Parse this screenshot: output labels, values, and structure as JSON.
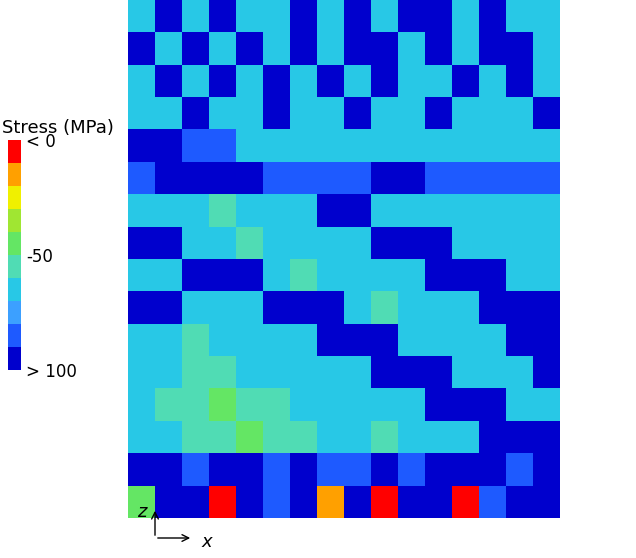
{
  "chart_data": {
    "type": "heatmap",
    "colorbar": {
      "title": "Stress (MPa)",
      "range": [
        -100,
        0
      ],
      "levels": [
        -100,
        -90,
        -80,
        -70,
        -60,
        -50,
        -40,
        -30,
        -20,
        -10,
        0
      ],
      "colors": [
        "#0000cd",
        "#1e5aff",
        "#3ca0ff",
        "#28c8e6",
        "#50dcb4",
        "#64e664",
        "#a0e632",
        "#f0f000",
        "#ffa000",
        "#ff0000"
      ],
      "ticks": [
        {
          "value": 0,
          "label": "< 0"
        },
        -50,
        {
          "value": -100,
          "label": "> 100"
        }
      ]
    },
    "axis_labels": {
      "x": "x",
      "z": "z"
    },
    "tick_labels": false,
    "cells": [
      [
        -65,
        -95,
        -65,
        -95,
        -65,
        -65,
        -95,
        -65,
        -95,
        -65,
        -95,
        -95,
        -65,
        -95,
        -65,
        -65
      ],
      [
        -95,
        -65,
        -95,
        -65,
        -95,
        -65,
        -95,
        -65,
        -95,
        -95,
        -65,
        -95,
        -65,
        -95,
        -95,
        -65
      ],
      [
        -65,
        -95,
        -65,
        -95,
        -65,
        -95,
        -65,
        -95,
        -65,
        -95,
        -65,
        -65,
        -95,
        -65,
        -95,
        -65
      ],
      [
        -65,
        -65,
        -95,
        -65,
        -65,
        -95,
        -65,
        -65,
        -95,
        -65,
        -65,
        -95,
        -65,
        -65,
        -65,
        -95
      ],
      [
        -95,
        -95,
        -85,
        -85,
        -65,
        -65,
        -65,
        -65,
        -65,
        -65,
        -65,
        -65,
        -65,
        -65,
        -65,
        -65
      ],
      [
        -85,
        -95,
        -95,
        -95,
        -95,
        -85,
        -85,
        -85,
        -85,
        -95,
        -95,
        -85,
        -85,
        -85,
        -85,
        -85
      ],
      [
        -65,
        -65,
        -65,
        -55,
        -65,
        -65,
        -65,
        -95,
        -95,
        -65,
        -65,
        -65,
        -65,
        -65,
        -65,
        -65
      ],
      [
        -95,
        -95,
        -65,
        -65,
        -55,
        -65,
        -65,
        -65,
        -65,
        -95,
        -95,
        -95,
        -65,
        -65,
        -65,
        -65
      ],
      [
        -65,
        -65,
        -95,
        -95,
        -95,
        -65,
        -55,
        -65,
        -65,
        -65,
        -65,
        -95,
        -95,
        -95,
        -65,
        -65
      ],
      [
        -95,
        -95,
        -65,
        -65,
        -65,
        -95,
        -95,
        -95,
        -65,
        -55,
        -65,
        -65,
        -65,
        -95,
        -95,
        -95
      ],
      [
        -65,
        -65,
        -55,
        -65,
        -65,
        -65,
        -65,
        -95,
        -95,
        -95,
        -65,
        -65,
        -65,
        -65,
        -95,
        -95
      ],
      [
        -65,
        -65,
        -55,
        -55,
        -65,
        -65,
        -65,
        -65,
        -65,
        -95,
        -95,
        -95,
        -65,
        -65,
        -65,
        -95
      ],
      [
        -65,
        -55,
        -55,
        -45,
        -55,
        -55,
        -65,
        -65,
        -65,
        -65,
        -65,
        -95,
        -95,
        -95,
        -65,
        -65
      ],
      [
        -65,
        -65,
        -55,
        -55,
        -45,
        -55,
        -55,
        -65,
        -65,
        -55,
        -65,
        -65,
        -65,
        -95,
        -95,
        -95
      ],
      [
        -95,
        -95,
        -85,
        -95,
        -95,
        -85,
        -95,
        -85,
        -85,
        -95,
        -85,
        -95,
        -95,
        -95,
        -85,
        -95
      ],
      [
        -45,
        -95,
        -95,
        -5,
        -95,
        -85,
        -95,
        -15,
        -95,
        -5,
        -95,
        -95,
        -5,
        -85,
        -95,
        -95
      ]
    ]
  }
}
